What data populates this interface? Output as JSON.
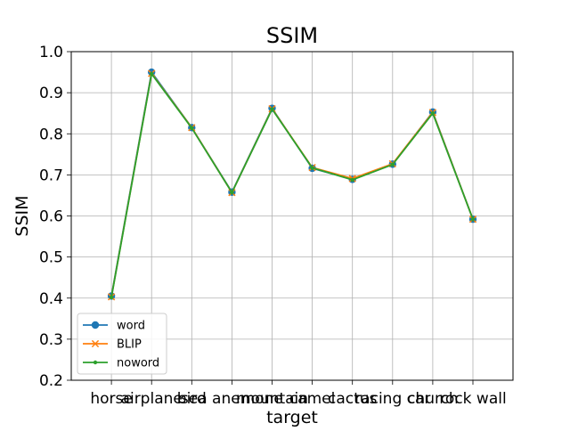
{
  "chart_data": {
    "type": "line",
    "title": "SSIM",
    "xlabel": "target",
    "ylabel": "SSIM",
    "ylim": [
      0.2,
      1.0
    ],
    "yticks": [
      0.2,
      0.3,
      0.4,
      0.5,
      0.6,
      0.7,
      0.8,
      0.9,
      1.0
    ],
    "grid": true,
    "legend_position": "lower-left",
    "categories": [
      "horse",
      "airplane",
      "bird",
      "sea anemone",
      "mountain",
      "camel",
      "cactus",
      "racing car",
      "church",
      "rock wall"
    ],
    "series": [
      {
        "name": "word",
        "marker": "circle",
        "color": "#1f77b4",
        "values": [
          0.405,
          0.95,
          0.815,
          0.658,
          0.862,
          0.716,
          0.689,
          0.726,
          0.853,
          0.592
        ]
      },
      {
        "name": "BLIP",
        "marker": "x",
        "color": "#ff7f0e",
        "values": [
          0.403,
          0.947,
          0.815,
          0.657,
          0.861,
          0.718,
          0.691,
          0.727,
          0.852,
          0.592
        ]
      },
      {
        "name": "noword",
        "marker": "dot",
        "color": "#2ca02c",
        "values": [
          0.402,
          0.946,
          0.814,
          0.657,
          0.86,
          0.717,
          0.688,
          0.725,
          0.85,
          0.592
        ]
      }
    ]
  }
}
